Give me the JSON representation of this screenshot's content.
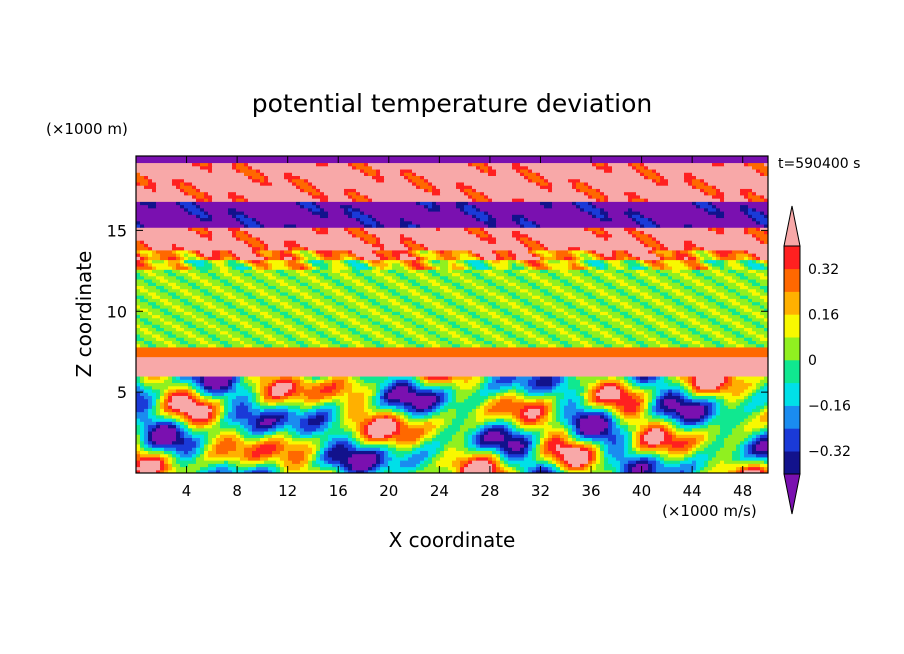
{
  "chart_data": {
    "type": "heatmap",
    "title": "potential temperature deviation",
    "xlabel": "X coordinate",
    "ylabel": "Z coordinate",
    "x_unit": "(×1000 m/s)",
    "y_unit": "(×1000 m)",
    "time_label": "t=590400 s",
    "xlim": [
      0,
      50
    ],
    "ylim": [
      0,
      19.6
    ],
    "x_ticks": [
      4,
      8,
      12,
      16,
      20,
      24,
      28,
      32,
      36,
      40,
      44,
      48
    ],
    "y_ticks": [
      5,
      10,
      15
    ],
    "colorbar": {
      "levels": [
        -0.4,
        -0.32,
        -0.24,
        -0.16,
        -0.08,
        0,
        0.08,
        0.16,
        0.24,
        0.32,
        0.4
      ],
      "colors": [
        "#7a10b0",
        "#12128c",
        "#1a3ad8",
        "#1a8cf0",
        "#00e0e8",
        "#10e890",
        "#90f020",
        "#f8f800",
        "#ffb000",
        "#ff6800",
        "#ff2020",
        "#f8a8a8"
      ],
      "labeled_ticks": [
        {
          "value": 0.32,
          "label": "0.32"
        },
        {
          "value": 0.16,
          "label": "0.16"
        },
        {
          "value": 0,
          "label": "0"
        },
        {
          "value": -0.16,
          "label": "−0.16"
        },
        {
          "value": -0.32,
          "label": "−0.32"
        }
      ]
    },
    "layers": [
      {
        "z_range": [
          19.2,
          19.6
        ],
        "value": -0.5
      },
      {
        "z_range": [
          16.8,
          19.2
        ],
        "value": 0.5
      },
      {
        "z_range": [
          15.2,
          16.8
        ],
        "value": -0.5
      },
      {
        "z_range": [
          13.8,
          15.2
        ],
        "value": 0.5
      },
      {
        "z_range": [
          13.2,
          13.8
        ],
        "value": 0.3
      },
      {
        "z_range": [
          12.7,
          13.2
        ],
        "value": 0.1
      },
      {
        "z_range": [
          7.9,
          12.7
        ],
        "value": 0.04
      },
      {
        "z_range": [
          7.3,
          7.9
        ],
        "value": 0.3
      },
      {
        "z_range": [
          6.1,
          7.3
        ],
        "value": 0.5
      },
      {
        "z_range": [
          0,
          6.1
        ],
        "value": "turbulent"
      }
    ]
  }
}
